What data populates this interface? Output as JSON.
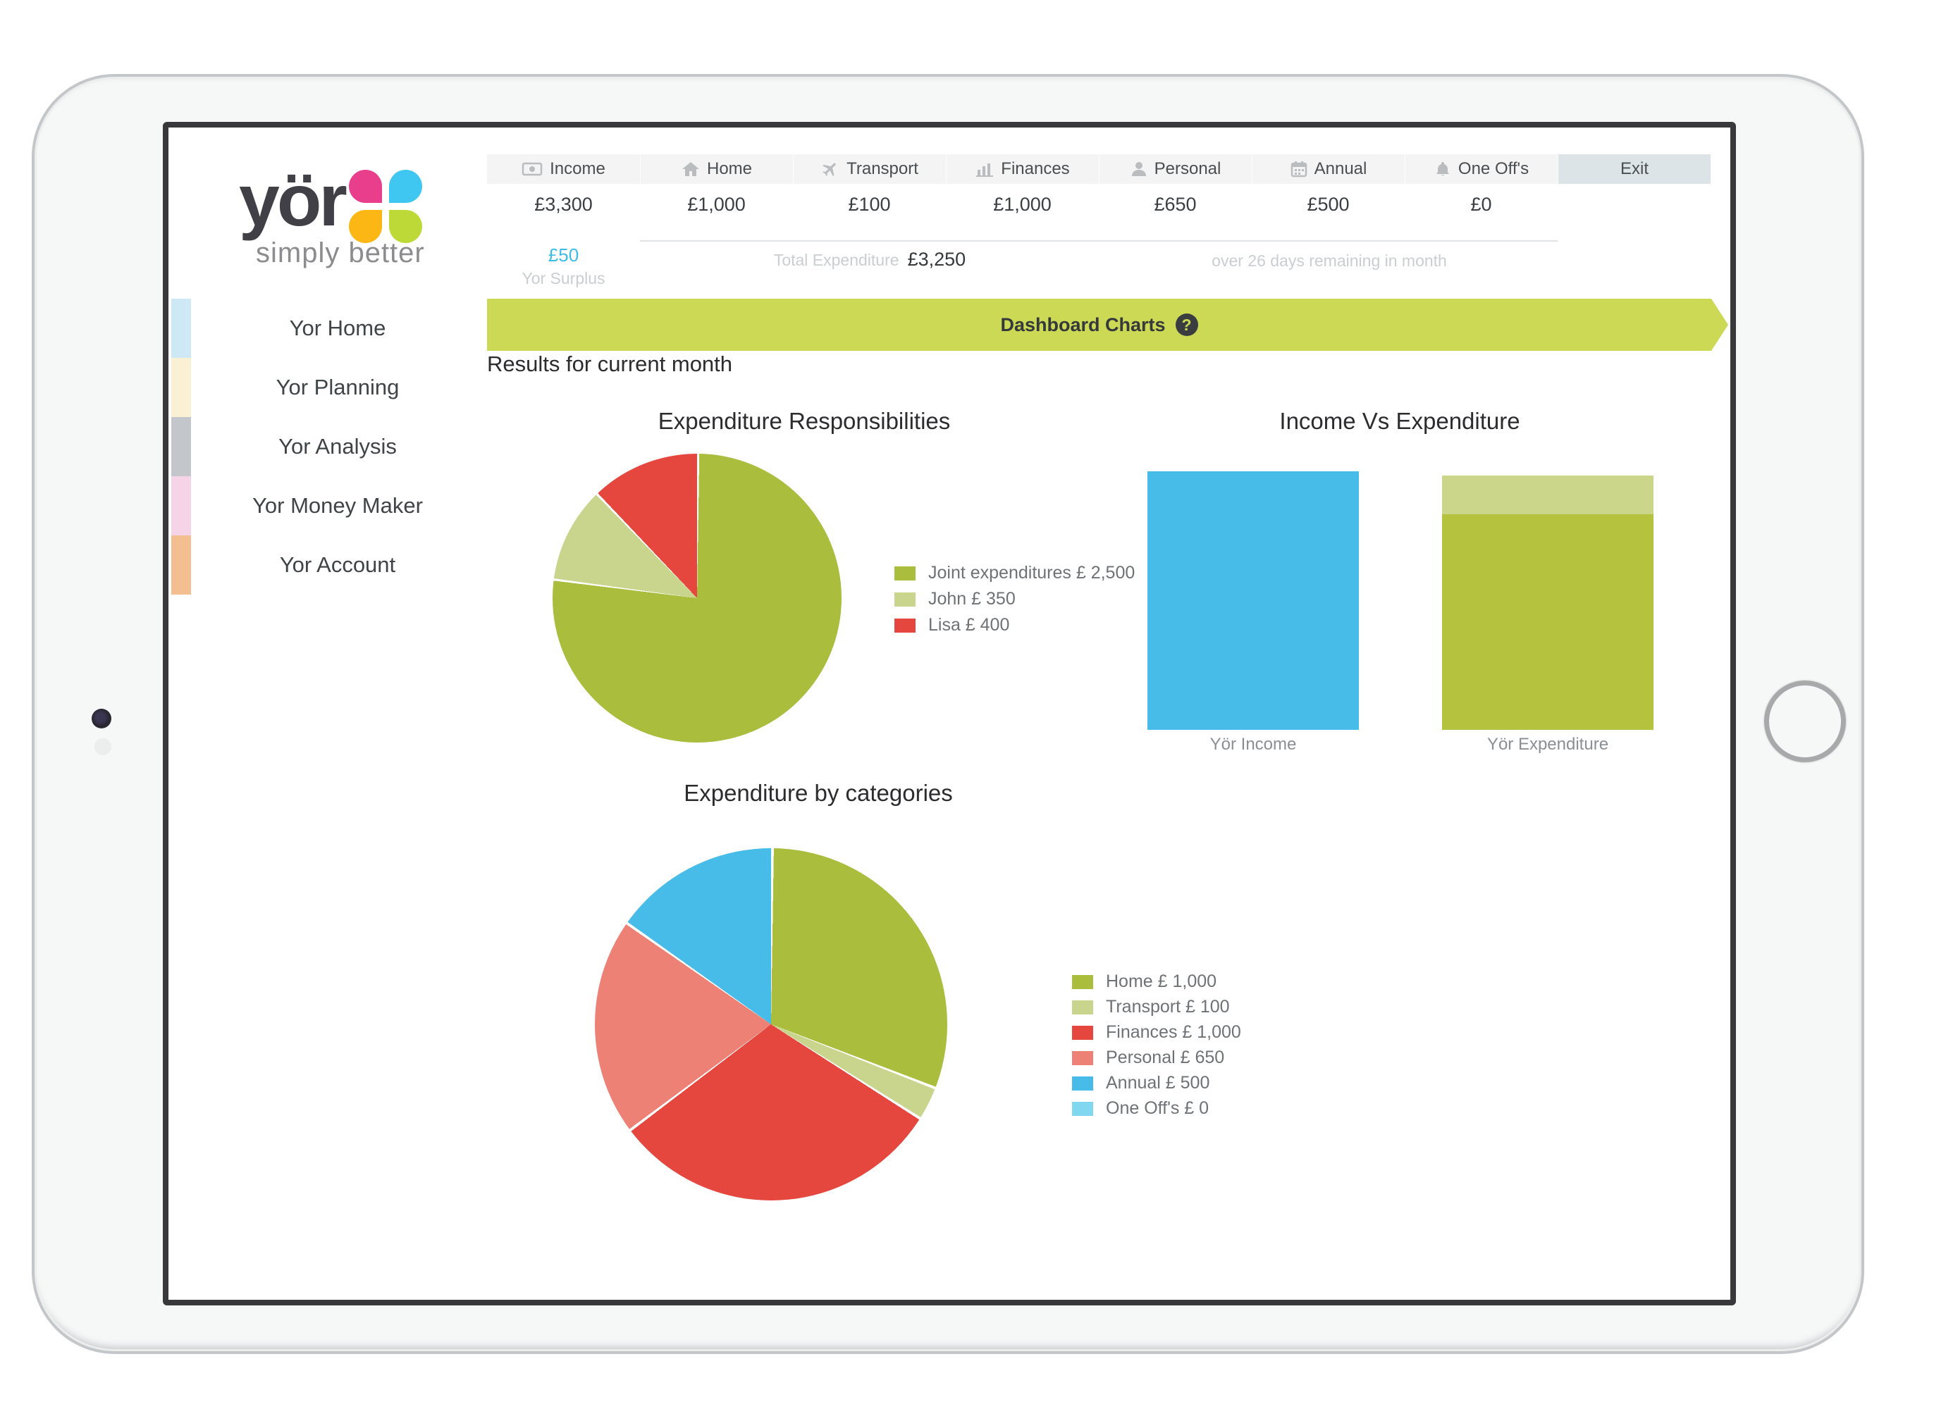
{
  "brand": {
    "name": "yör",
    "tagline": "simply better",
    "flower": {
      "pink": "#e83e8c",
      "blue": "#3fc6f1",
      "orange": "#fcb714",
      "green": "#bcd938"
    }
  },
  "top_nav": {
    "tabs": [
      {
        "label": "Income",
        "icon": "banknote-icon",
        "amount": "£3,300",
        "sub_amount": "£50",
        "sub_label": "Yor Surplus"
      },
      {
        "label": "Home",
        "icon": "home-icon",
        "amount": "£1,000"
      },
      {
        "label": "Transport",
        "icon": "plane-icon",
        "amount": "£100"
      },
      {
        "label": "Finances",
        "icon": "bar-chart-icon",
        "amount": "£1,000"
      },
      {
        "label": "Personal",
        "icon": "person-icon",
        "amount": "£650"
      },
      {
        "label": "Annual",
        "icon": "calendar-icon",
        "amount": "£500"
      },
      {
        "label": "One Off's",
        "icon": "bell-icon",
        "amount": "£0"
      },
      {
        "label": "Exit"
      }
    ],
    "total_expenditure_label": "Total Expenditure",
    "total_expenditure_value": "£3,250",
    "days_remaining": "over 26 days remaining in month"
  },
  "sidebar": {
    "items": [
      {
        "label": "Yor Home",
        "swatch": "#cfe8f5"
      },
      {
        "label": "Yor Planning",
        "swatch": "#faf0d4"
      },
      {
        "label": "Yor Analysis",
        "swatch": "#c3c7cc"
      },
      {
        "label": "Yor Money Maker",
        "swatch": "#f6d4e8"
      },
      {
        "label": "Yor Account",
        "swatch": "#f4bf90"
      }
    ]
  },
  "banner": {
    "title": "Dashboard Charts",
    "help_glyph": "?",
    "bg": "#ccd955"
  },
  "results_label": "Results for current month",
  "chart_data": [
    {
      "type": "pie",
      "title": "Expenditure Responsibilities",
      "legend_position": "right",
      "total": 3250,
      "slices": [
        {
          "label": "Joint expenditures",
          "value": 2500,
          "color": "#aabd3c",
          "legend_label": "Joint expenditures £ 2,500"
        },
        {
          "label": "John",
          "value": 350,
          "color": "#c9d48c",
          "legend_label": "John £ 350"
        },
        {
          "label": "Lisa",
          "value": 400,
          "color": "#e5473e",
          "legend_label": "Lisa £ 400"
        }
      ]
    },
    {
      "type": "bar",
      "title": "Income Vs Expenditure",
      "ylim": [
        0,
        3300
      ],
      "categories": [
        "Yör Income",
        "Yör Expenditure"
      ],
      "bars": [
        {
          "label": "Yör Income",
          "value": 3300,
          "segments": [
            {
              "value": 3300,
              "color": "#47bce8"
            }
          ]
        },
        {
          "label": "Yör Expenditure",
          "value": 3250,
          "segments": [
            {
              "value": 2750,
              "color": "#b5c23e"
            },
            {
              "value": 500,
              "color": "#cbd68b"
            }
          ]
        }
      ]
    },
    {
      "type": "pie",
      "title": "Expenditure by categories",
      "legend_position": "right",
      "total": 3250,
      "slices": [
        {
          "label": "Home",
          "value": 1000,
          "color": "#aabd3c",
          "legend_label": "Home £ 1,000"
        },
        {
          "label": "Transport",
          "value": 100,
          "color": "#c9d48c",
          "legend_label": "Transport £ 100"
        },
        {
          "label": "Finances",
          "value": 1000,
          "color": "#e5473e",
          "legend_label": "Finances £ 1,000"
        },
        {
          "label": "Personal",
          "value": 650,
          "color": "#ee8176",
          "legend_label": "Personal £ 650"
        },
        {
          "label": "Annual",
          "value": 500,
          "color": "#47bce8",
          "legend_label": "Annual £ 500"
        },
        {
          "label": "One Off's",
          "value": 0,
          "color": "#82d7f0",
          "legend_label": "One Off's £ 0"
        }
      ]
    }
  ]
}
